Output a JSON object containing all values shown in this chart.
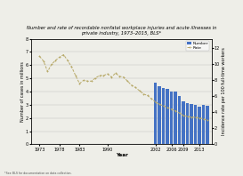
{
  "title_line1": "Number and rate of recordable nonfatal workplace injuries and acute illnesses in",
  "title_line2": "private industry, 1973–2015, BLS*",
  "xlabel": "Year",
  "ylabel_left": "Number of cases in millions",
  "ylabel_right": "Incidence rate per 100 full-time workers",
  "footnote": "*See BLS for documentation on data collection.",
  "bar_years": [
    2002,
    2003,
    2004,
    2005,
    2006,
    2007,
    2008,
    2009,
    2010,
    2011,
    2012,
    2013,
    2014,
    2015
  ],
  "bar_values": [
    4.7,
    4.4,
    4.26,
    4.2,
    3.97,
    4.02,
    3.69,
    3.28,
    3.1,
    3.06,
    2.98,
    2.88,
    2.96,
    2.91
  ],
  "bar_color": "#4472C4",
  "line_years": [
    1973,
    1974,
    1975,
    1976,
    1977,
    1978,
    1979,
    1980,
    1981,
    1982,
    1983,
    1984,
    1985,
    1986,
    1987,
    1988,
    1989,
    1990,
    1991,
    1992,
    1993,
    1994,
    1995,
    1996,
    1997,
    1998,
    1999,
    2000,
    2001,
    2002,
    2003,
    2004,
    2005,
    2006,
    2007,
    2008,
    2009,
    2010,
    2011,
    2012,
    2013,
    2014,
    2015
  ],
  "line_values": [
    11.0,
    10.4,
    9.1,
    10.0,
    10.5,
    10.9,
    11.2,
    10.5,
    9.7,
    8.6,
    7.6,
    8.0,
    7.9,
    7.9,
    8.3,
    8.6,
    8.6,
    8.8,
    8.4,
    8.9,
    8.5,
    8.4,
    7.9,
    7.4,
    7.1,
    6.7,
    6.3,
    6.1,
    5.7,
    5.3,
    5.0,
    4.8,
    4.6,
    4.4,
    4.2,
    3.9,
    3.6,
    3.5,
    3.4,
    3.4,
    3.3,
    3.2,
    3.0
  ],
  "line_color": "#B8AA6A",
  "ylim_left": [
    0,
    8
  ],
  "ylim_right": [
    0,
    13.2
  ],
  "yticks_left": [
    0,
    1,
    2,
    3,
    4,
    5,
    6,
    7,
    8
  ],
  "yticks_right": [
    0.0,
    2.0,
    4.0,
    6.0,
    8.0,
    10.0,
    12.0
  ],
  "xlim": [
    1971,
    2016
  ],
  "xtick_positions": [
    1973,
    1978,
    1983,
    1990,
    2002,
    2006,
    2009,
    2013
  ],
  "xtick_labels": [
    "1973",
    "1978",
    "1983",
    "1990",
    "2002",
    "2006",
    "2009",
    "2013"
  ],
  "legend_number_label": "Number",
  "legend_rate_label": "Rate",
  "bg_color": "#EEEEE8",
  "grid_color": "#BBBBBB",
  "title_fontsize": 3.8,
  "tick_fontsize": 3.5,
  "label_fontsize": 3.5,
  "legend_fontsize": 3.2
}
